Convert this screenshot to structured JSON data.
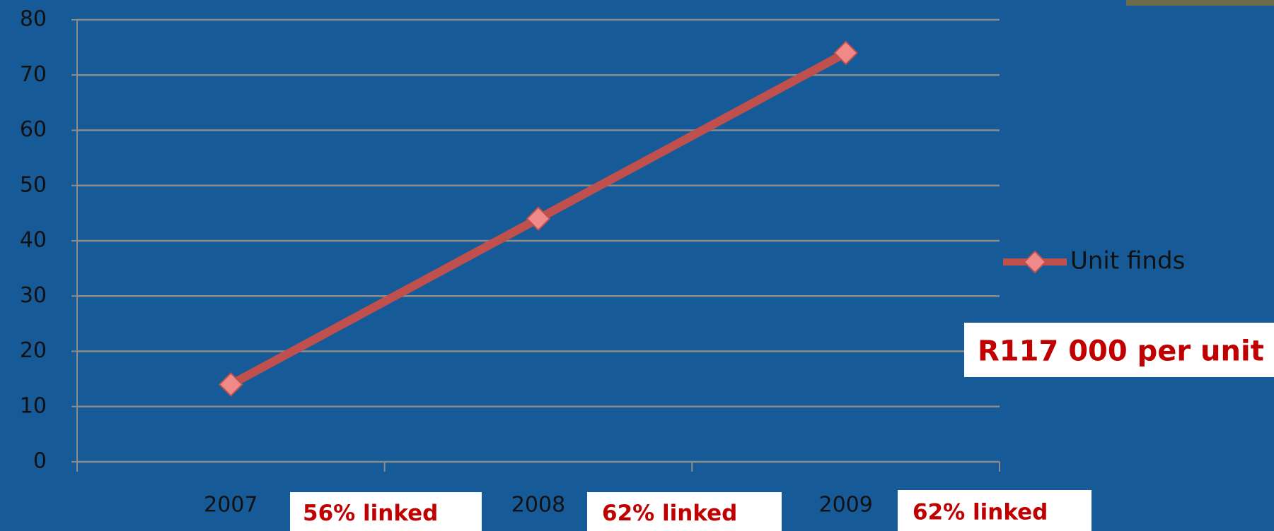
{
  "chart_data": {
    "type": "line",
    "categories": [
      "2007",
      "2008",
      "2009"
    ],
    "series": [
      {
        "name": "Unit finds",
        "color": "#c0504d",
        "values": [
          14,
          44,
          74
        ]
      }
    ],
    "ylim": [
      0,
      80
    ],
    "yticks": [
      0,
      10,
      20,
      30,
      40,
      50,
      60,
      70,
      80
    ],
    "grid": true,
    "legend": "right",
    "annotations": [
      "R117 000 per unit",
      "56% linked",
      "62% linked",
      "62% linked"
    ]
  }
}
